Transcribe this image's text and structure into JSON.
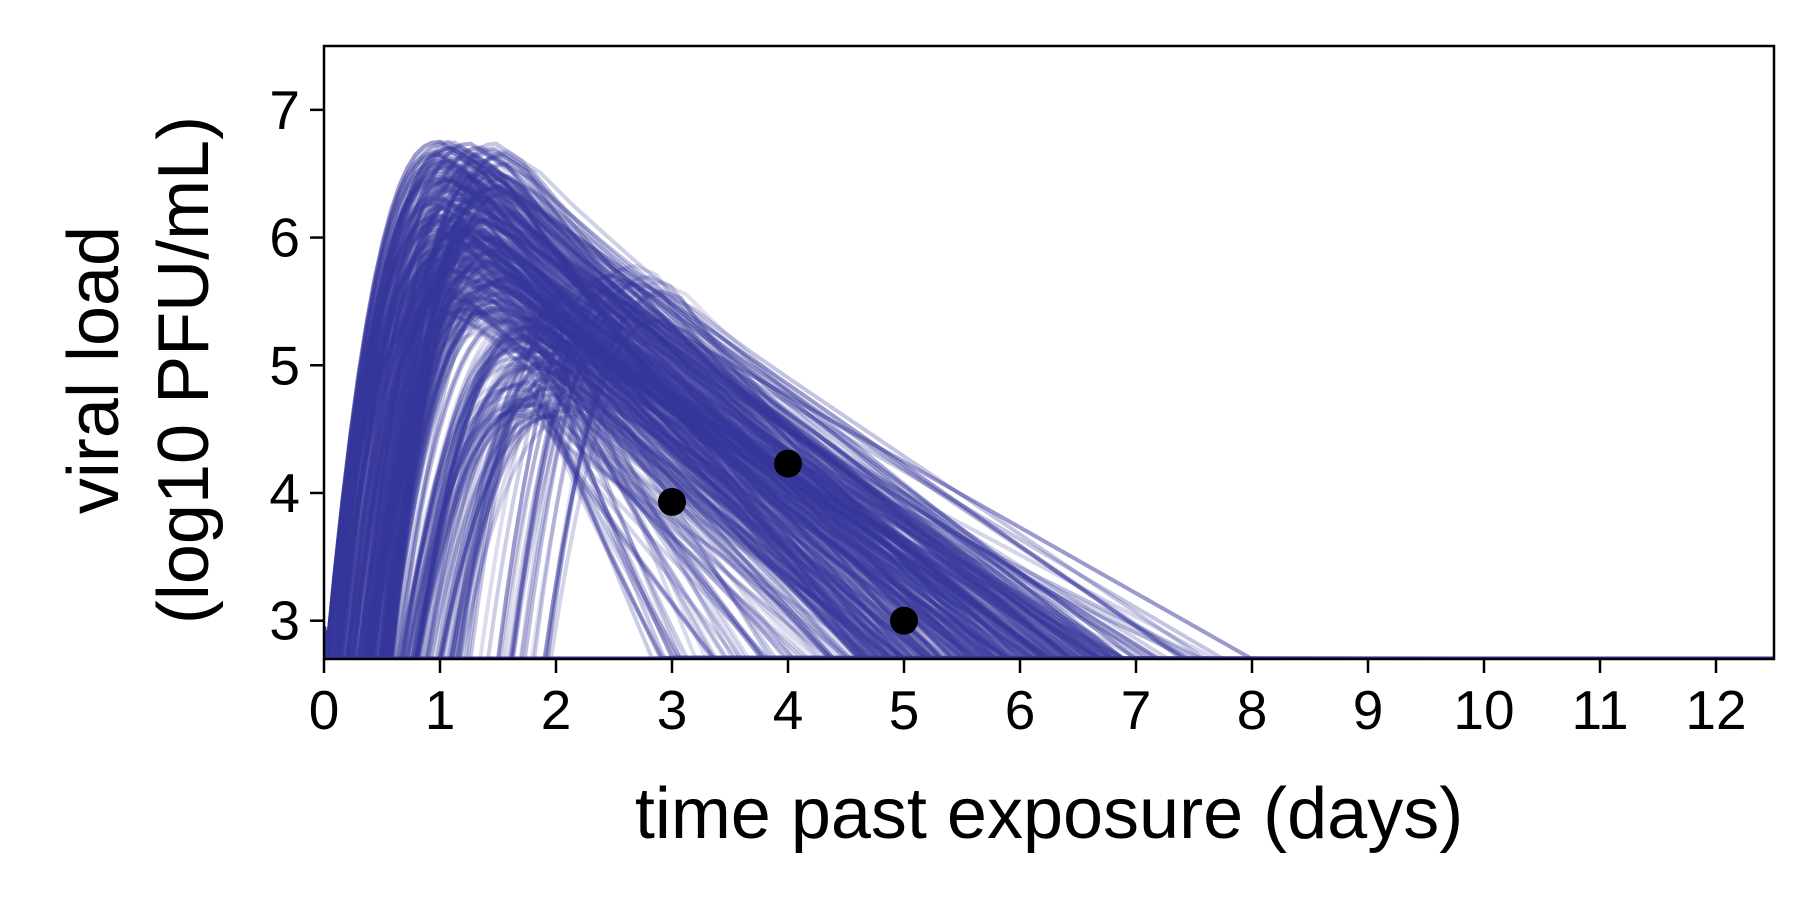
{
  "chart_data": {
    "type": "line",
    "xlabel": "time past exposure (days)",
    "ylabel_line1": "viral load",
    "ylabel_line2": "(log10 PFU/mL)",
    "xlim": [
      0,
      12.5
    ],
    "ylim": [
      2.7,
      7.5
    ],
    "xticks": [
      0,
      1,
      2,
      3,
      4,
      5,
      6,
      7,
      8,
      9,
      10,
      11,
      12
    ],
    "yticks": [
      3,
      4,
      5,
      6,
      7
    ],
    "grid": false,
    "legend": "none",
    "colors": {
      "trajectories": "#36379a",
      "observations": "#000000"
    },
    "trajectory_style": "many overlapping semi-transparent simulated curves rising from ~day 0 to a peak near day 1-2, then declining linearly to the floor of ~2.7 between days 3 and 8",
    "trajectory_peaks": [
      {
        "peak_day": 1.0,
        "peak_value": 6.75,
        "end_day": 7.4
      },
      {
        "peak_day": 1.1,
        "peak_value": 6.7,
        "end_day": 7.0
      },
      {
        "peak_day": 1.0,
        "peak_value": 6.6,
        "end_day": 6.6
      },
      {
        "peak_day": 1.1,
        "peak_value": 6.45,
        "end_day": 6.2
      },
      {
        "peak_day": 1.2,
        "peak_value": 6.3,
        "end_day": 6.8
      },
      {
        "peak_day": 1.3,
        "peak_value": 6.15,
        "end_day": 8.0
      },
      {
        "peak_day": 1.5,
        "peak_value": 5.9,
        "end_day": 7.2
      },
      {
        "peak_day": 1.5,
        "peak_value": 5.45,
        "end_day": 5.2
      },
      {
        "peak_day": 1.8,
        "peak_value": 5.3,
        "end_day": 4.4
      },
      {
        "peak_day": 2.0,
        "peak_value": 4.6,
        "end_day": 3.0
      },
      {
        "peak_day": 2.5,
        "peak_value": 5.7,
        "end_day": 6.0
      },
      {
        "peak_day": 2.9,
        "peak_value": 5.35,
        "end_day": 6.9
      }
    ],
    "observations": [
      {
        "x": 3,
        "y": 3.93
      },
      {
        "x": 4,
        "y": 4.23
      },
      {
        "x": 5,
        "y": 3.0
      }
    ]
  }
}
